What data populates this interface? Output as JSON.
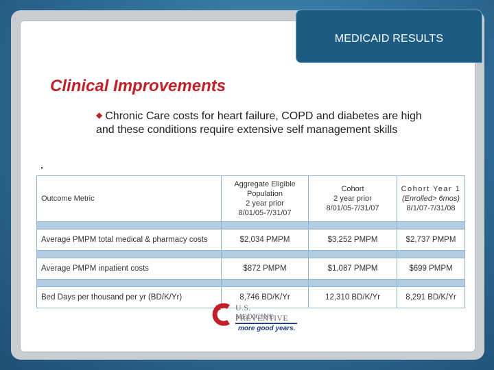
{
  "header": {
    "title": "MEDICAID RESULTS"
  },
  "slide": {
    "title": "Clinical Improvements",
    "bullet": "Chronic Care costs for heart failure, COPD and diabetes are high and these conditions require extensive self management skills"
  },
  "table": {
    "headers": {
      "metric": "Outcome Metric",
      "col1": [
        "Aggregate Eligible",
        "Population",
        "2 year prior",
        "8/01/05-7/31/07"
      ],
      "col2": [
        "Cohort",
        "2 year prior",
        "8/01/05-7/31/07"
      ],
      "col3": [
        "Cohort Year 1",
        "(Enrolled> 6mos)",
        "8/1/07-7/31/08"
      ]
    },
    "rows": [
      {
        "metric": "Average PMPM total medical & pharmacy costs",
        "v1": "$2,034 PMPM",
        "v2": "$3,252 PMPM",
        "v3": "$2,737 PMPM"
      },
      {
        "metric": "Average PMPM inpatient costs",
        "v1": "$872 PMPM",
        "v2": "$1,087 PMPM",
        "v3": "$699 PMPM"
      },
      {
        "metric": "Bed Days per thousand per yr (BD/K/Yr)",
        "v1": "8,746 BD/K/Yr",
        "v2": "12,310 BD/K/Yr",
        "v3": "8,291 BD/K/Yr"
      }
    ]
  },
  "logo": {
    "line1": "U.S. PREVENTIVE",
    "line2": "MEDICINE",
    "tagline": "more good years.",
    "icon": "us-preventive-medicine-logo-icon",
    "brand_color": "#c0202a"
  },
  "colors": {
    "accent_red": "#c0202a",
    "header_blue": "#1e5b82",
    "table_band": "#b4cde3"
  }
}
